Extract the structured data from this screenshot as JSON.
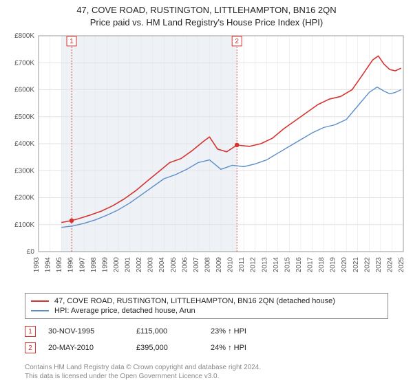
{
  "title": {
    "line1": "47, COVE ROAD, RUSTINGTON, LITTLEHAMPTON, BN16 2QN",
    "line2": "Price paid vs. HM Land Registry's House Price Index (HPI)"
  },
  "chart": {
    "type": "line",
    "background_color": "#ffffff",
    "shaded_region_color": "#eef2f7",
    "shaded_region_x": [
      1995,
      2010.4
    ],
    "grid_color": "#e2e2e2",
    "axis_color": "#999",
    "x": {
      "min": 1993,
      "max": 2025,
      "ticks": [
        1993,
        1994,
        1995,
        1996,
        1997,
        1998,
        1999,
        2000,
        2001,
        2002,
        2003,
        2004,
        2005,
        2006,
        2007,
        2008,
        2009,
        2010,
        2011,
        2012,
        2013,
        2014,
        2015,
        2016,
        2017,
        2018,
        2019,
        2020,
        2021,
        2022,
        2023,
        2024,
        2025
      ],
      "label_fontsize": 10,
      "label_rotate": -90
    },
    "y": {
      "min": 0,
      "max": 800000,
      "ticks": [
        0,
        100000,
        200000,
        300000,
        400000,
        500000,
        600000,
        700000,
        800000
      ],
      "tick_labels": [
        "£0",
        "£100K",
        "£200K",
        "£300K",
        "£400K",
        "£500K",
        "£600K",
        "£700K",
        "£800K"
      ],
      "label_fontsize": 10
    },
    "series": [
      {
        "name": "price_paid",
        "color": "#d6322f",
        "width": 1.6,
        "points": [
          [
            1995.0,
            108000
          ],
          [
            1995.9,
            115000
          ],
          [
            1996.5,
            122000
          ],
          [
            1997.5,
            135000
          ],
          [
            1998.5,
            150000
          ],
          [
            1999.5,
            170000
          ],
          [
            2000.5,
            195000
          ],
          [
            2001.5,
            225000
          ],
          [
            2002.5,
            260000
          ],
          [
            2003.5,
            295000
          ],
          [
            2004.5,
            330000
          ],
          [
            2005.5,
            345000
          ],
          [
            2006.5,
            375000
          ],
          [
            2007.5,
            410000
          ],
          [
            2008.0,
            425000
          ],
          [
            2008.7,
            380000
          ],
          [
            2009.5,
            370000
          ],
          [
            2010.4,
            395000
          ],
          [
            2011.5,
            390000
          ],
          [
            2012.5,
            400000
          ],
          [
            2013.5,
            420000
          ],
          [
            2014.5,
            455000
          ],
          [
            2015.5,
            485000
          ],
          [
            2016.5,
            515000
          ],
          [
            2017.5,
            545000
          ],
          [
            2018.5,
            565000
          ],
          [
            2019.5,
            575000
          ],
          [
            2020.5,
            600000
          ],
          [
            2021.5,
            660000
          ],
          [
            2022.3,
            710000
          ],
          [
            2022.8,
            725000
          ],
          [
            2023.3,
            695000
          ],
          [
            2023.8,
            675000
          ],
          [
            2024.3,
            670000
          ],
          [
            2024.8,
            680000
          ]
        ]
      },
      {
        "name": "hpi",
        "color": "#5a8dca",
        "width": 1.4,
        "points": [
          [
            1995.0,
            90000
          ],
          [
            1996.0,
            95000
          ],
          [
            1997.0,
            105000
          ],
          [
            1998.0,
            118000
          ],
          [
            1999.0,
            135000
          ],
          [
            2000.0,
            155000
          ],
          [
            2001.0,
            180000
          ],
          [
            2002.0,
            210000
          ],
          [
            2003.0,
            240000
          ],
          [
            2004.0,
            270000
          ],
          [
            2005.0,
            285000
          ],
          [
            2006.0,
            305000
          ],
          [
            2007.0,
            330000
          ],
          [
            2008.0,
            340000
          ],
          [
            2009.0,
            305000
          ],
          [
            2010.0,
            320000
          ],
          [
            2011.0,
            315000
          ],
          [
            2012.0,
            325000
          ],
          [
            2013.0,
            340000
          ],
          [
            2014.0,
            365000
          ],
          [
            2015.0,
            390000
          ],
          [
            2016.0,
            415000
          ],
          [
            2017.0,
            440000
          ],
          [
            2018.0,
            460000
          ],
          [
            2019.0,
            470000
          ],
          [
            2020.0,
            490000
          ],
          [
            2021.0,
            540000
          ],
          [
            2022.0,
            590000
          ],
          [
            2022.7,
            610000
          ],
          [
            2023.3,
            595000
          ],
          [
            2023.8,
            585000
          ],
          [
            2024.3,
            590000
          ],
          [
            2024.8,
            600000
          ]
        ]
      }
    ],
    "event_markers": [
      {
        "id": "1",
        "x": 1995.9,
        "y": 115000,
        "badge_y": 780000,
        "color": "#d6322f"
      },
      {
        "id": "2",
        "x": 2010.4,
        "y": 395000,
        "badge_y": 780000,
        "color": "#d6322f"
      }
    ],
    "marker_dot": {
      "radius": 3.3,
      "color": "#d6322f"
    }
  },
  "legend": {
    "items": [
      {
        "color": "#d6322f",
        "label": "47, COVE ROAD, RUSTINGTON, LITTLEHAMPTON, BN16 2QN (detached house)"
      },
      {
        "color": "#5a8dca",
        "label": "HPI: Average price, detached house, Arun"
      }
    ]
  },
  "marker_table": [
    {
      "badge": "1",
      "date": "30-NOV-1995",
      "price": "£115,000",
      "pct": "23% ↑ HPI"
    },
    {
      "badge": "2",
      "date": "20-MAY-2010",
      "price": "£395,000",
      "pct": "24% ↑ HPI"
    }
  ],
  "footnote": {
    "line1": "Contains HM Land Registry data © Crown copyright and database right 2024.",
    "line2": "This data is licensed under the Open Government Licence v3.0."
  }
}
